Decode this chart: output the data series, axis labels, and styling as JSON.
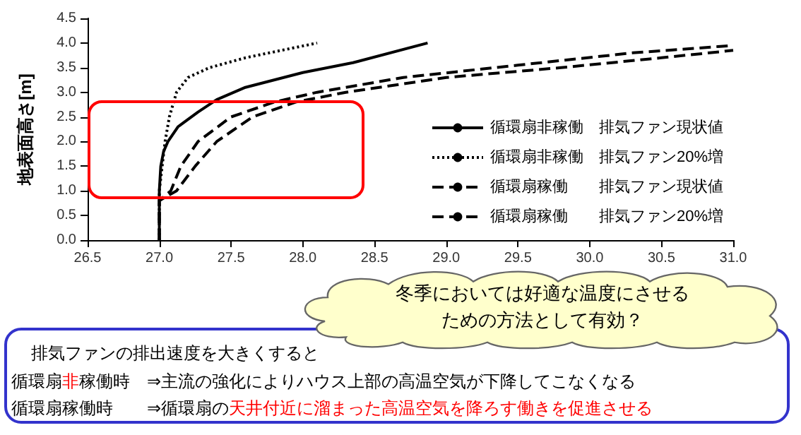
{
  "chart_data": {
    "type": "line",
    "ylabel": "地表面高さ[m]",
    "xlim": [
      26.5,
      31.0
    ],
    "xticks": [
      {
        "value": 26.5,
        "label": "26.5"
      },
      {
        "value": 27.0,
        "label": "27.0"
      },
      {
        "value": 27.5,
        "label": "27.5"
      },
      {
        "value": 28.0,
        "label": "28.0"
      },
      {
        "value": 28.5,
        "label": "28.5"
      },
      {
        "value": 29.0,
        "label": "29.0"
      },
      {
        "value": 29.5,
        "label": "29.5"
      },
      {
        "value": 30.0,
        "label": "30.0"
      },
      {
        "value": 30.5,
        "label": "30.5"
      },
      {
        "value": 31.0,
        "label": "31.0"
      }
    ],
    "ylim": [
      0,
      4.5
    ],
    "yticks": [
      {
        "value": 0,
        "label": "0.0"
      },
      {
        "value": 0.5,
        "label": "0.5"
      },
      {
        "value": 1.0,
        "label": "1.0"
      },
      {
        "value": 1.5,
        "label": "1.5"
      },
      {
        "value": 2.0,
        "label": "2.0"
      },
      {
        "value": 2.5,
        "label": "2.5"
      },
      {
        "value": 3.0,
        "label": "3.0"
      },
      {
        "value": 3.5,
        "label": "3.5"
      },
      {
        "value": 4.0,
        "label": "4.0"
      },
      {
        "value": 4.5,
        "label": "4.5"
      }
    ],
    "grid": false,
    "legend": "right",
    "marker": "none",
    "series": [
      {
        "name": "循環扇非稼働　排気ファン現状値",
        "color": "#000000",
        "line_style": "solid",
        "x": [
          27.0,
          27.0,
          27.01,
          27.03,
          27.06,
          27.13,
          27.27,
          27.4,
          27.6,
          28.0,
          28.35,
          28.87
        ],
        "values": [
          0,
          1.0,
          1.5,
          1.8,
          2.0,
          2.3,
          2.6,
          2.85,
          3.1,
          3.4,
          3.6,
          4.0
        ]
      },
      {
        "name": "循環扇非稼働　排気ファン20%増",
        "color": "#000000",
        "line_style": "dotted",
        "x": [
          27.0,
          27.0,
          27.02,
          27.04,
          27.07,
          27.12,
          27.2,
          27.35,
          27.6,
          27.85,
          28.1
        ],
        "values": [
          0,
          1.0,
          1.5,
          2.0,
          2.5,
          3.0,
          3.3,
          3.5,
          3.7,
          3.85,
          4.0
        ]
      },
      {
        "name": "循環扇稼働　　排気ファン現状値",
        "color": "#000000",
        "line_style": "dashed",
        "x": [
          27.0,
          27.0,
          27.12,
          27.25,
          27.4,
          27.65,
          27.95,
          28.3,
          29.0,
          29.8,
          30.5,
          31.0
        ],
        "values": [
          0,
          0.8,
          1.0,
          1.5,
          2.0,
          2.5,
          2.8,
          3.0,
          3.3,
          3.5,
          3.7,
          3.85
        ]
      },
      {
        "name": "循環扇稼働　　排気ファン20%増",
        "color": "#000000",
        "line_style": "dashed",
        "x": [
          27.0,
          27.0,
          27.08,
          27.15,
          27.27,
          27.5,
          27.8,
          28.1,
          28.7,
          29.5,
          30.3,
          31.0
        ],
        "values": [
          0,
          0.8,
          1.0,
          1.5,
          2.0,
          2.5,
          2.8,
          3.0,
          3.3,
          3.55,
          3.8,
          3.95
        ]
      }
    ],
    "annotations": [
      "冬季においては好適な温度にさせるための方法として有効？",
      "排気ファンの排出速度を大きくすると",
      "循環扇非稼働時　⇒主流の強化によりハウス上部の高温空気が下降してこなくなる",
      "循環扇稼働時　　⇒循環扇の天井付近に溜まった高温空気を降ろす働きを促進させる"
    ]
  }
}
